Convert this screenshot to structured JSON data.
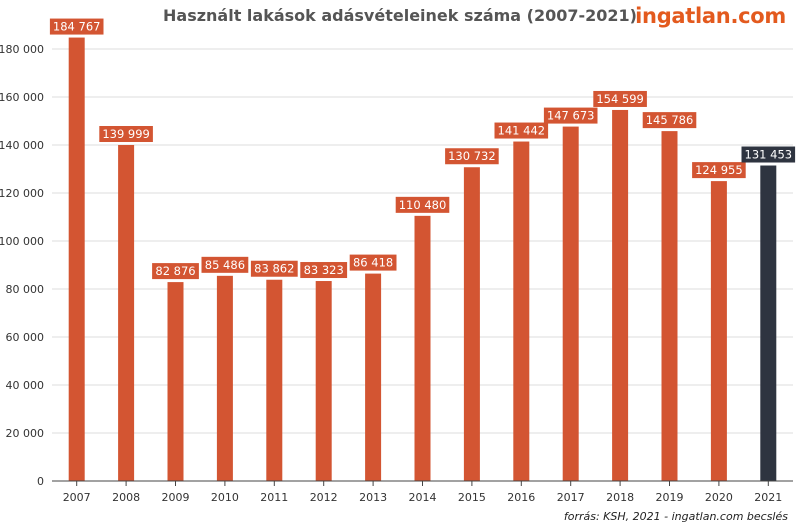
{
  "header": {
    "logo_text": "ingatlan.com"
  },
  "footer": {
    "source": "forrás: KSH, 2021 - ingatlan.com becslés"
  },
  "colors": {
    "bar": "#d35532",
    "highlight_bar": "#2e3440",
    "grid": "#dddddd",
    "axis": "#444444"
  },
  "chart_data": {
    "type": "bar",
    "title": "Használt lakások adásvételeinek száma (2007-2021)",
    "xlabel": "",
    "ylabel": "",
    "categories": [
      "2007",
      "2008",
      "2009",
      "2010",
      "2011",
      "2012",
      "2013",
      "2014",
      "2015",
      "2016",
      "2017",
      "2018",
      "2019",
      "2020",
      "2021"
    ],
    "values": [
      184767,
      139999,
      82876,
      85486,
      83862,
      83323,
      86418,
      110480,
      130732,
      141442,
      147673,
      154599,
      145786,
      124955,
      131453
    ],
    "value_labels": [
      "184 767",
      "139 999",
      "82 876",
      "85 486",
      "83 862",
      "83 323",
      "86 418",
      "110 480",
      "130 732",
      "141 442",
      "147 673",
      "154 599",
      "145 786",
      "124 955",
      "131 453"
    ],
    "highlight": [
      "2021"
    ],
    "ylim": [
      0,
      185000
    ],
    "yticks": [
      0,
      20000,
      40000,
      60000,
      80000,
      100000,
      120000,
      140000,
      160000,
      180000
    ],
    "ytick_labels": [
      "0",
      "20 000",
      "40 000",
      "60 000",
      "80 000",
      "100 000",
      "120 000",
      "140 000",
      "160 000",
      "180 000"
    ],
    "grid": true,
    "legend": "none"
  }
}
